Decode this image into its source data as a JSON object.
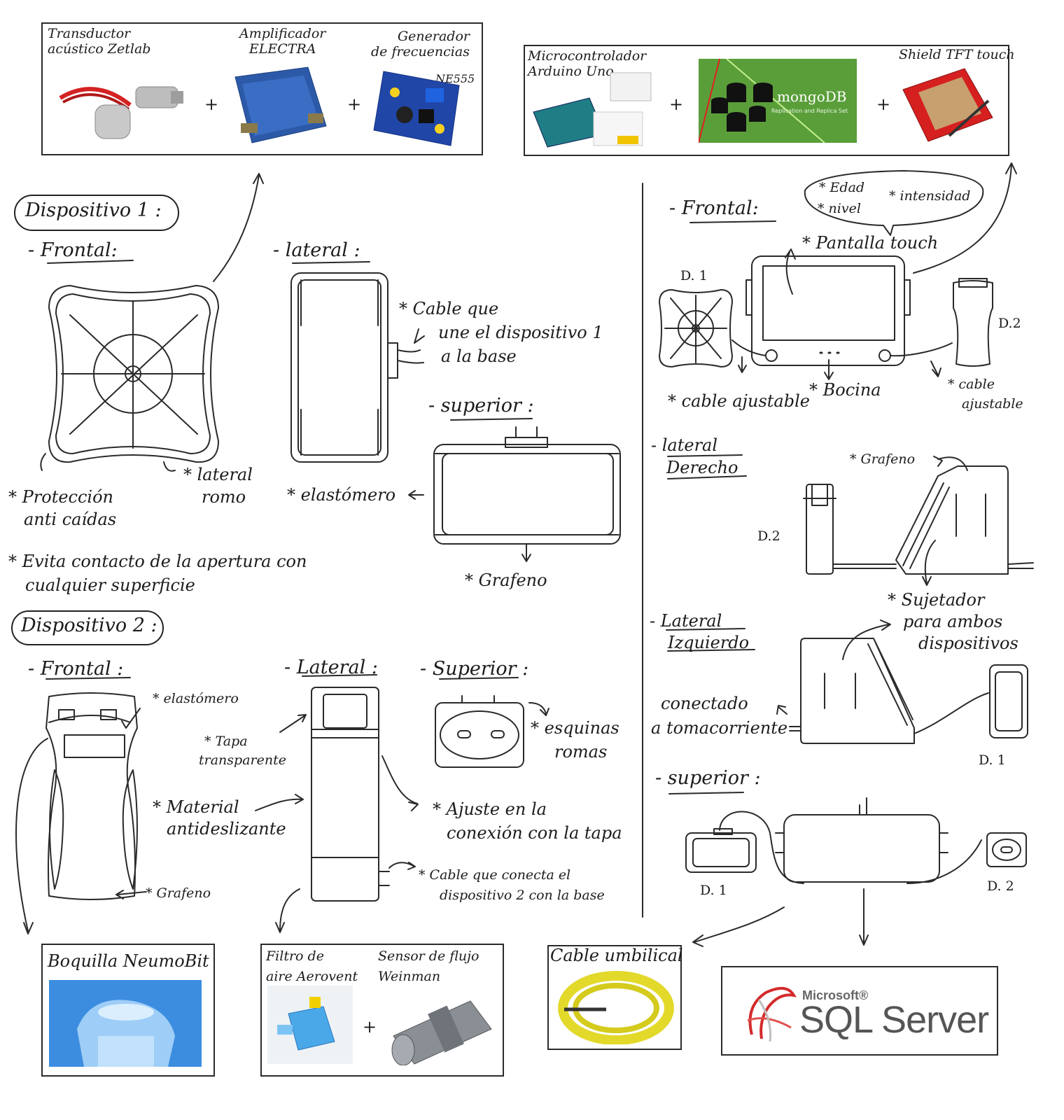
{
  "top_left_box": {
    "transductor": [
      "Transductor",
      "acústico Zetlab"
    ],
    "amplificador": [
      "Amplificador",
      "ELECTRA"
    ],
    "generador": [
      "Generador",
      "de frecuencias"
    ],
    "ne555": "NE555",
    "plus": "+"
  },
  "top_right_box": {
    "micro": [
      "Microcontrolador",
      "Arduino Uno"
    ],
    "mongo_logo": "mongoDB",
    "mongo_sub": "Replication and Replica Set",
    "shield": "Shield TFT touch",
    "plus": "+"
  },
  "device1": {
    "title": "Dispositivo 1 :",
    "frontal": "- Frontal:",
    "lateral": "- lateral :",
    "superior": "- superior :",
    "cable_note": [
      "* Cable que",
      "une el dispositivo 1",
      "a la base"
    ],
    "proteccion": [
      "* Protección",
      "anti caídas"
    ],
    "lateral_romo": [
      "* lateral",
      "romo"
    ],
    "elastomero": "* elastómero",
    "grafeno": "* Grafeno",
    "evita": [
      "* Evita contacto de la apertura con",
      "cualquier superficie"
    ]
  },
  "device2": {
    "title": "Dispositivo 2 :",
    "frontal": "- Frontal :",
    "lateral": "- Lateral :",
    "superior": "- Superior :",
    "elastomero": "* elastómero",
    "tapa": [
      "* Tapa",
      "transparente"
    ],
    "material": [
      "* Material",
      "antideslizante"
    ],
    "grafeno": "* Grafeno",
    "esquinas": [
      "* esquinas",
      "romas"
    ],
    "ajuste": [
      "* Ajuste en la",
      "conexión con la tapa"
    ],
    "cable": [
      "* Cable que conecta el",
      "dispositivo 2 con la base"
    ]
  },
  "base": {
    "frontal": "- Frontal:",
    "bubble": [
      "* Edad",
      "* nivel",
      "* intensidad"
    ],
    "pantalla": "* Pantalla touch",
    "d1": "D. 1",
    "d2": "D.2",
    "cable_ajustable_left": "* cable ajustable",
    "bocina": "* Bocina",
    "cable_ajustable_right": [
      "* cable",
      "ajustable"
    ],
    "lateral_derecho": [
      "- lateral",
      "Derecho"
    ],
    "grafeno": "* Grafeno",
    "sujetador": [
      "* Sujetador",
      "para ambos",
      "dispositivos"
    ],
    "lateral_izquierdo": [
      "- Lateral",
      "Izquierdo"
    ],
    "conectado": [
      "conectado",
      "a tomacorriente"
    ],
    "superior": "- superior :",
    "d1_b": "D. 1",
    "d2_b": "D. 2"
  },
  "bottom": {
    "boquilla": "Boquilla NeumoBit",
    "filtro": [
      "Filtro de",
      "aire Aerovent"
    ],
    "sensor": [
      "Sensor de flujo",
      "Weinman"
    ],
    "cable_umbilical": "Cable umbilical",
    "sql_ms": "Microsoft®",
    "sql_name": "SQL Server",
    "plus": "+"
  }
}
